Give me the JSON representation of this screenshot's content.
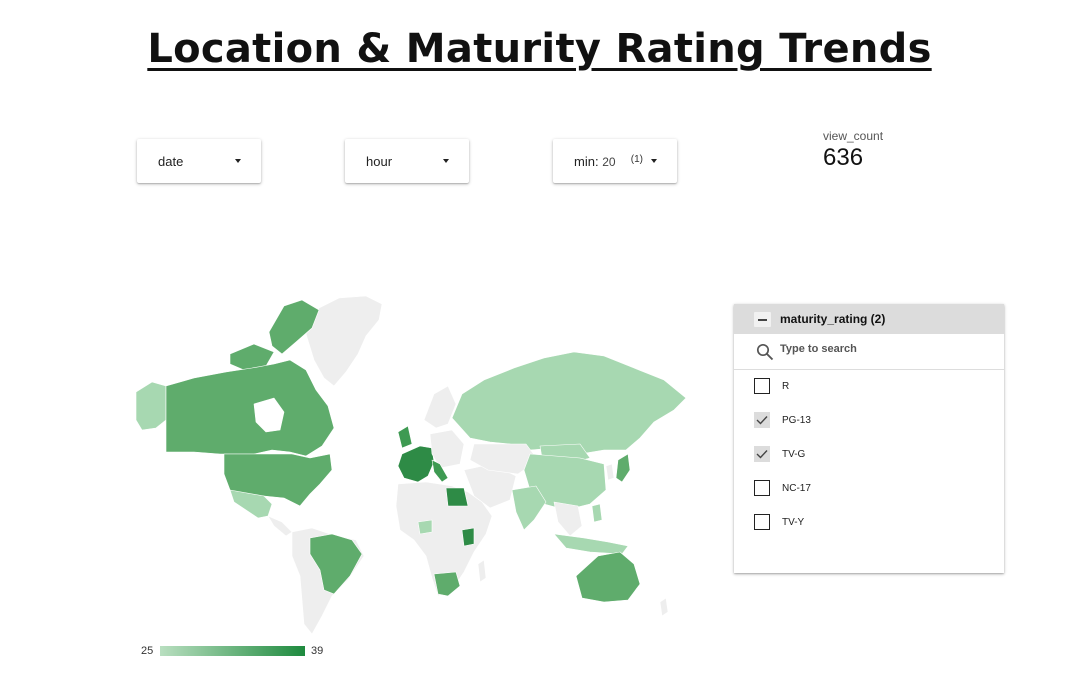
{
  "title": "Location & Maturity Rating Trends",
  "controls": {
    "date": {
      "label": "date"
    },
    "hour": {
      "label": "hour"
    },
    "min": {
      "label": "min:",
      "value": "20",
      "count": "(1)"
    }
  },
  "scorecard": {
    "label": "view_count",
    "value": "636"
  },
  "map": {
    "legend": {
      "min": "25",
      "max": "39",
      "color_low": "#b9dfc0",
      "color_high": "#1e8a3e"
    }
  },
  "filter": {
    "title": "maturity_rating (2)",
    "search_placeholder": "Type to search",
    "options": [
      {
        "label": "R",
        "checked": false
      },
      {
        "label": "PG-13",
        "checked": true
      },
      {
        "label": "TV-G",
        "checked": true
      },
      {
        "label": "NC-17",
        "checked": false
      },
      {
        "label": "TV-Y",
        "checked": false
      }
    ]
  }
}
